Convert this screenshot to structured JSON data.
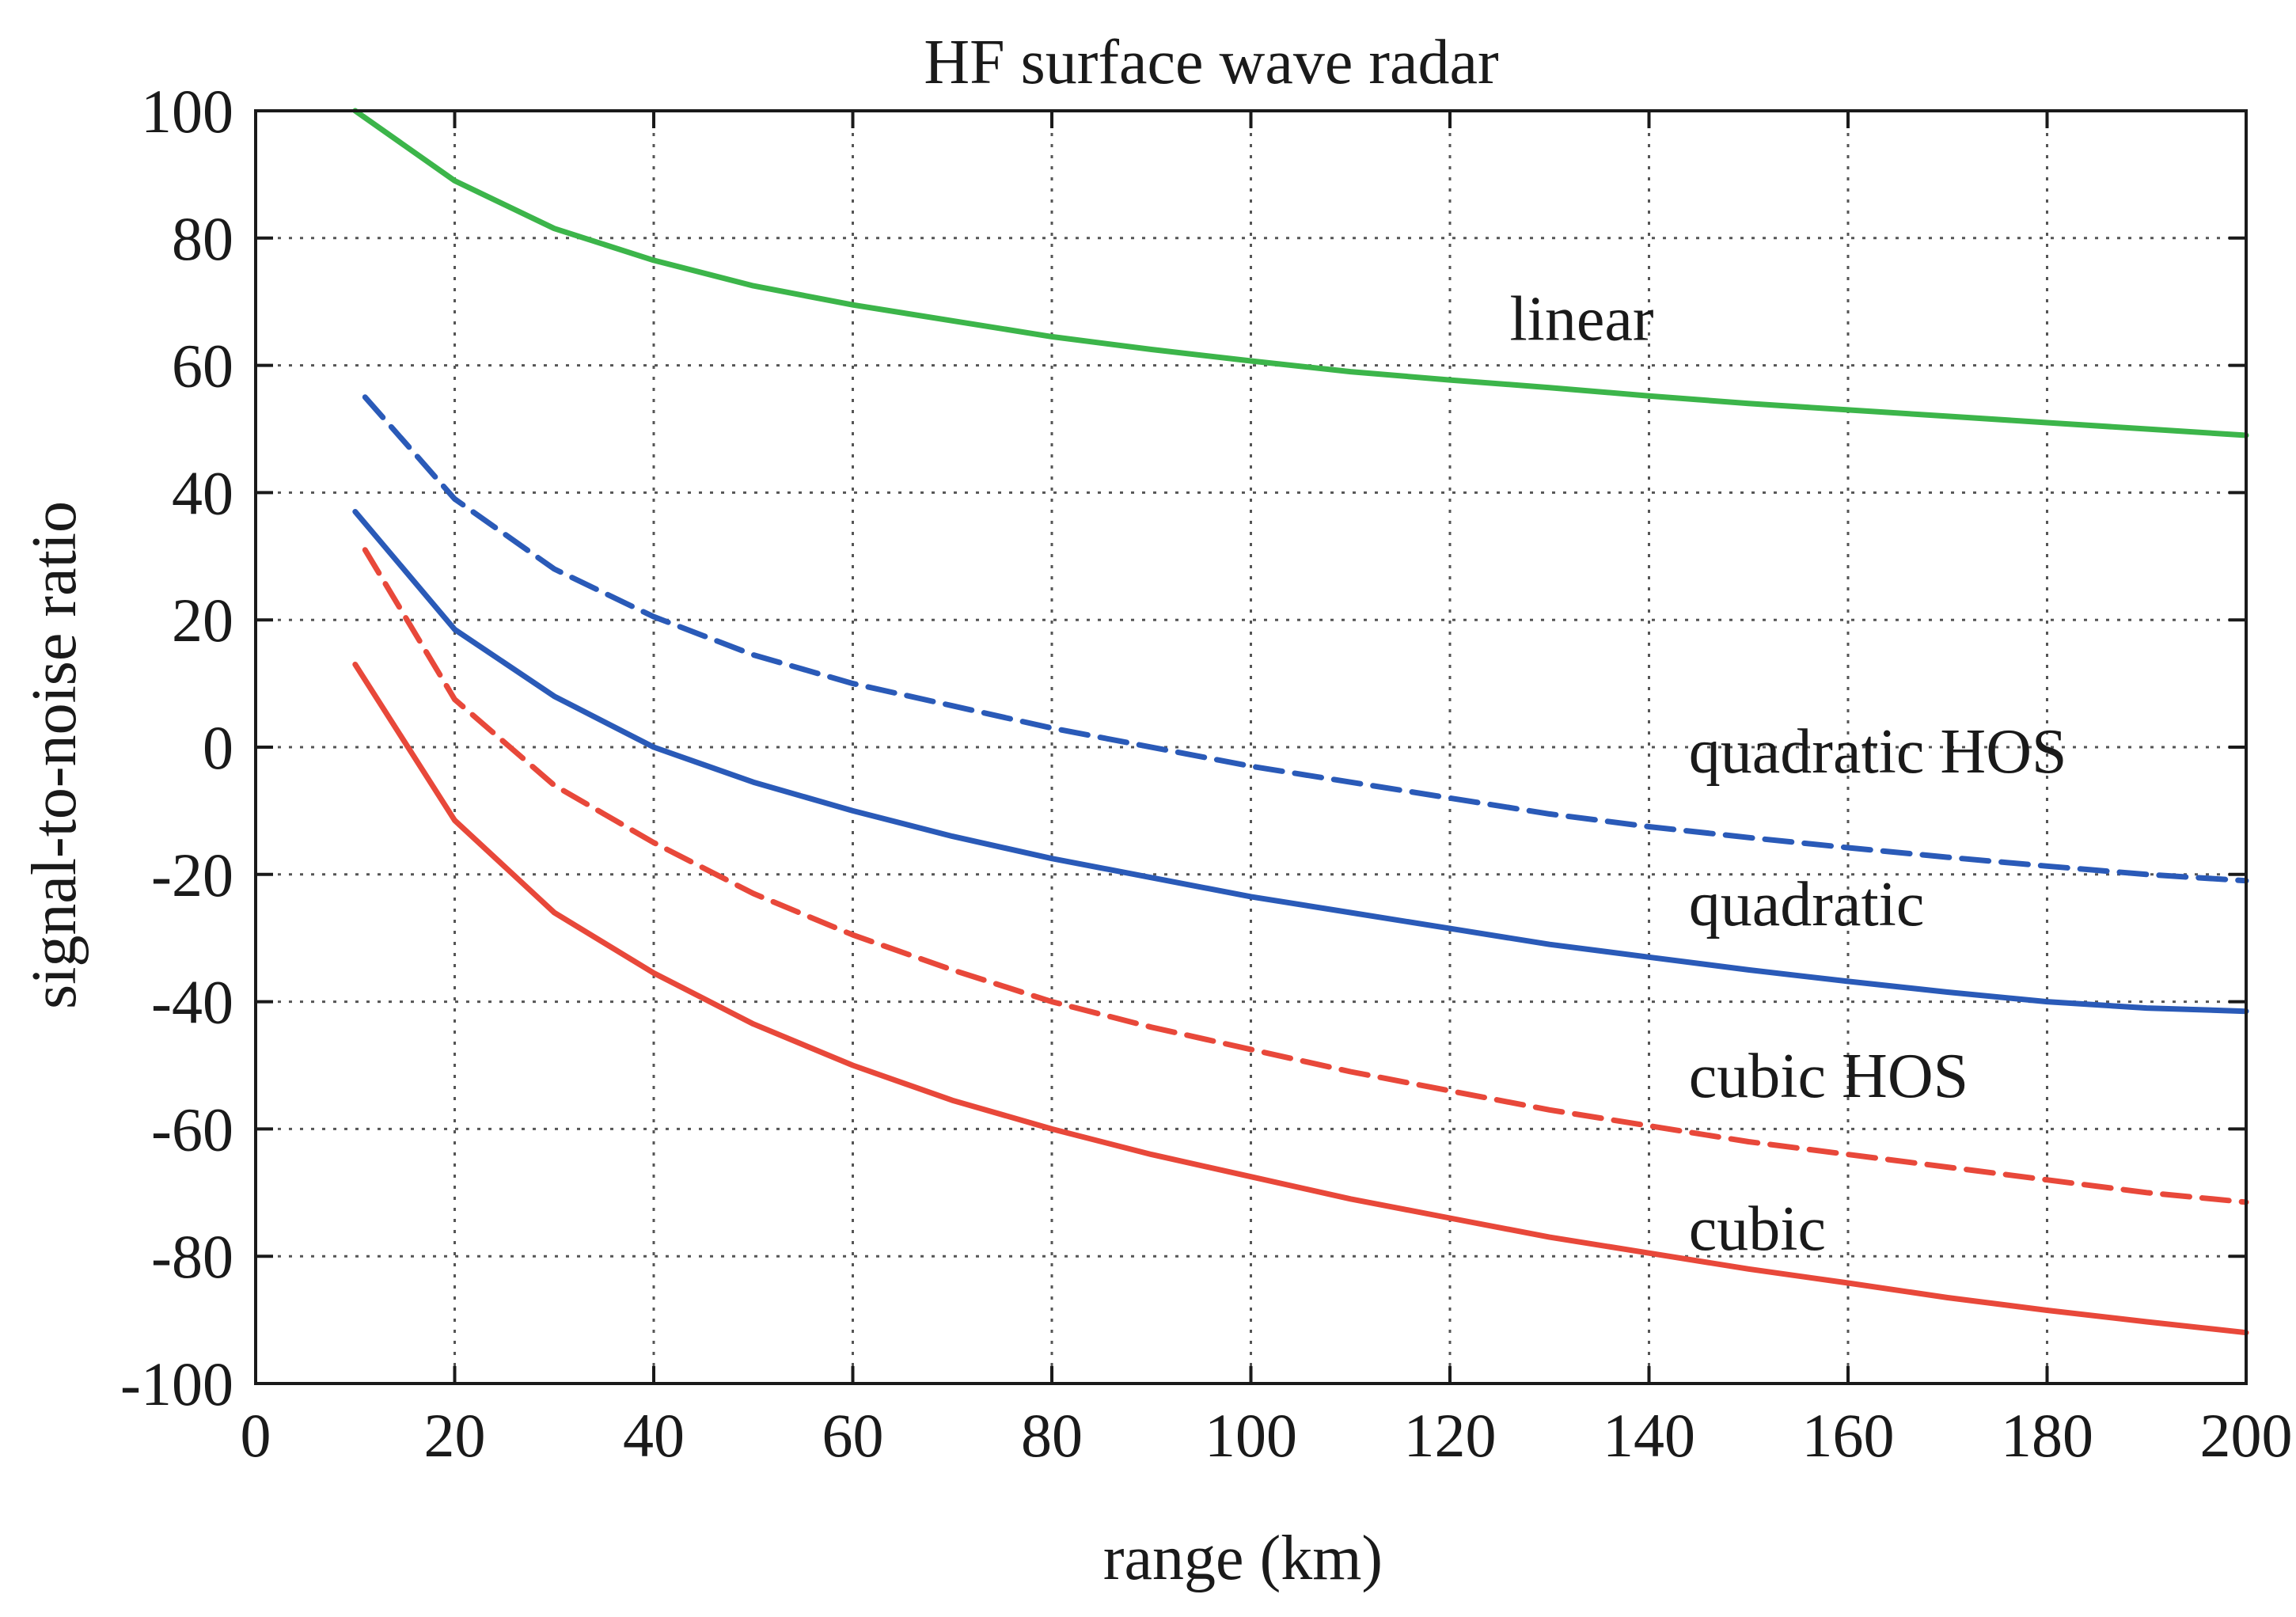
{
  "chart_data": {
    "type": "line",
    "title": "HF surface wave radar",
    "xlabel": "range (km)",
    "ylabel": "signal-to-noise ratio",
    "xlim": [
      0,
      200
    ],
    "ylim": [
      -100,
      100
    ],
    "xticks": [
      0,
      20,
      40,
      60,
      80,
      100,
      120,
      140,
      160,
      180,
      200
    ],
    "yticks": [
      100,
      80,
      60,
      40,
      20,
      0,
      -20,
      -40,
      -60,
      -80,
      -100
    ],
    "grid": true,
    "series": [
      {
        "name": "linear",
        "color": "#3cb54a",
        "dash": "solid",
        "label_anchor": {
          "x": 126,
          "y": 64
        },
        "x": [
          10,
          20,
          30,
          40,
          50,
          60,
          70,
          80,
          90,
          100,
          110,
          120,
          130,
          140,
          150,
          160,
          170,
          180,
          190,
          200
        ],
        "y": [
          100,
          89,
          81.5,
          76.5,
          72.5,
          69.5,
          67,
          64.5,
          62.5,
          60.7,
          59,
          57.7,
          56.5,
          55.2,
          54,
          53,
          52,
          51,
          50,
          49
        ]
      },
      {
        "name": "quadratic HOS",
        "color": "#2a5ab8",
        "dash": "dashed",
        "label_anchor": {
          "x": 144,
          "y": -4
        },
        "x": [
          11,
          20,
          30,
          40,
          50,
          60,
          70,
          80,
          90,
          100,
          110,
          120,
          130,
          140,
          150,
          160,
          170,
          180,
          190,
          200
        ],
        "y": [
          55,
          39,
          28,
          20.5,
          14.5,
          10,
          6.5,
          3,
          0,
          -3,
          -5.5,
          -8,
          -10.5,
          -12.5,
          -14.2,
          -15.8,
          -17.3,
          -18.7,
          -20,
          -21
        ]
      },
      {
        "name": "quadratic",
        "color": "#2a5ab8",
        "dash": "solid",
        "label_anchor": {
          "x": 144,
          "y": -28
        },
        "x": [
          10,
          20,
          30,
          40,
          50,
          60,
          70,
          80,
          90,
          100,
          110,
          120,
          130,
          140,
          150,
          160,
          170,
          180,
          190,
          200
        ],
        "y": [
          37,
          18.5,
          8,
          0,
          -5.5,
          -10,
          -14,
          -17.5,
          -20.5,
          -23.5,
          -26,
          -28.5,
          -31,
          -33,
          -35,
          -36.8,
          -38.5,
          -40,
          -41,
          -41.5
        ]
      },
      {
        "name": "cubic HOS",
        "color": "#e8483a",
        "dash": "dashed",
        "label_anchor": {
          "x": 144,
          "y": -55
        },
        "x": [
          11,
          20,
          30,
          40,
          50,
          60,
          70,
          80,
          90,
          100,
          110,
          120,
          130,
          140,
          150,
          160,
          170,
          180,
          190,
          200
        ],
        "y": [
          31,
          7.5,
          -6,
          -15,
          -23,
          -29.5,
          -35,
          -40,
          -44,
          -47.5,
          -51,
          -54,
          -57,
          -59.5,
          -62,
          -64,
          -66,
          -68,
          -70,
          -71.5
        ]
      },
      {
        "name": "cubic",
        "color": "#e8483a",
        "dash": "solid",
        "label_anchor": {
          "x": 144,
          "y": -79
        },
        "x": [
          10,
          20,
          30,
          40,
          50,
          60,
          70,
          80,
          90,
          100,
          110,
          120,
          130,
          140,
          150,
          160,
          170,
          180,
          190,
          200
        ],
        "y": [
          13,
          -11.5,
          -26,
          -35.5,
          -43.5,
          -50,
          -55.5,
          -60,
          -64,
          -67.5,
          -71,
          -74,
          -77,
          -79.5,
          -82,
          -84.2,
          -86.5,
          -88.5,
          -90.3,
          -92
        ]
      }
    ]
  }
}
